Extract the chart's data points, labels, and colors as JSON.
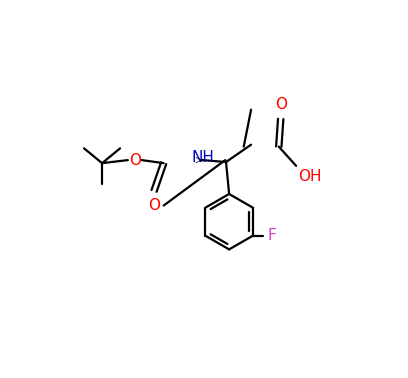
{
  "background_color": "#ffffff",
  "bond_color": "#000000",
  "O_color": "#ff0000",
  "N_color": "#0000cc",
  "F_color": "#cc44cc",
  "line_width": 1.6,
  "font_size": 11,
  "figsize": [
    4.08,
    3.78
  ],
  "dpi": 100,
  "xlim": [
    0,
    8.16
  ],
  "ylim": [
    0,
    7.56
  ]
}
